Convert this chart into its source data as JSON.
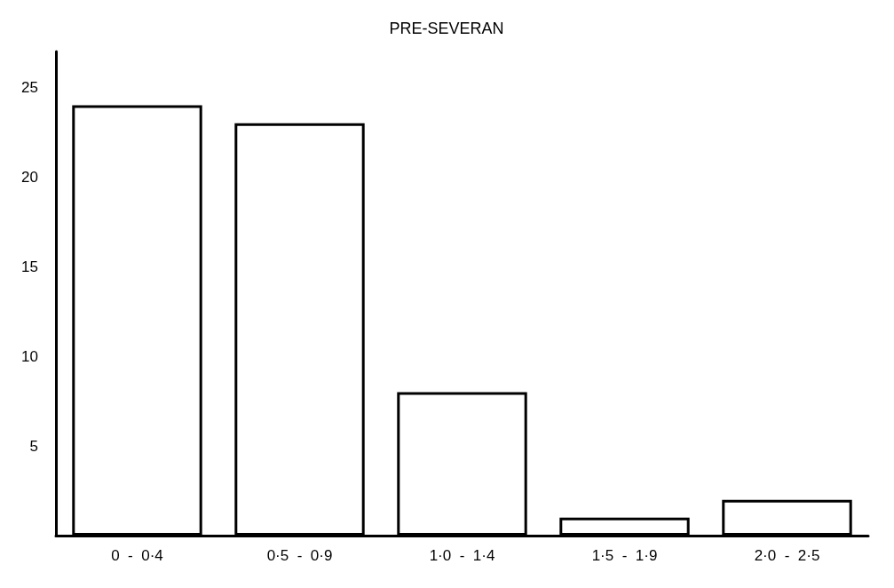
{
  "chart_data": {
    "type": "bar",
    "title": "PRE-SEVERAN",
    "categories": [
      "0  -  0·4",
      "0·5  -  0·9",
      "1·0  -  1·4",
      "1·5  -  1·9",
      "2·0  -  2·5"
    ],
    "values": [
      24,
      23,
      8,
      1,
      2
    ],
    "color": "#ffffff",
    "ylim": [
      0,
      27
    ],
    "yticks": [
      5,
      10,
      15,
      20,
      25
    ],
    "grid": false
  }
}
